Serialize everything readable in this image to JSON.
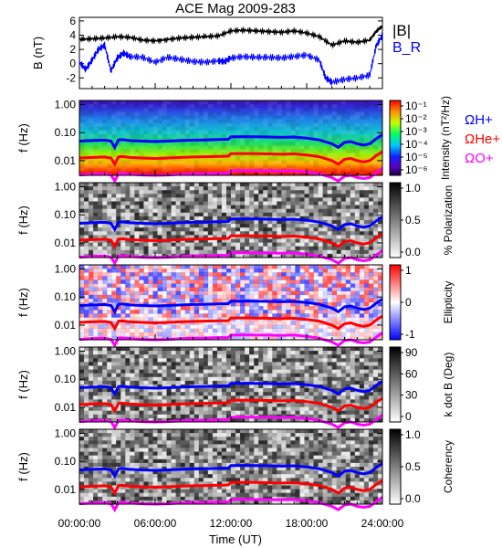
{
  "chart_data": [
    {
      "type": "line",
      "title": "ACE Mag 2009-283",
      "ylabel": "B (nT)",
      "ylim": [
        -3.5,
        6.5
      ],
      "yticks": [
        -2,
        0,
        2,
        4,
        6
      ],
      "xlim_hours": [
        0,
        24
      ],
      "legend": [
        "|B|",
        "B_R"
      ],
      "legend_placement": "right",
      "series": [
        {
          "name": "|B|",
          "color": "#000000",
          "x": [
            0,
            1,
            2,
            3,
            4,
            5,
            6,
            7,
            8,
            9,
            10,
            11,
            12,
            13,
            14,
            15,
            16,
            17,
            18,
            19,
            20,
            21,
            22,
            23,
            23.5,
            24
          ],
          "y": [
            3.4,
            3.5,
            3.6,
            3.8,
            3.7,
            3.3,
            3.2,
            3.4,
            3.6,
            3.7,
            3.8,
            3.9,
            4.6,
            4.7,
            4.6,
            4.5,
            4.4,
            4.6,
            4.3,
            3.8,
            2.6,
            3.2,
            3.0,
            3.3,
            4.5,
            5.3
          ]
        },
        {
          "name": "B_R",
          "color": "#0000ff",
          "x": [
            0,
            0.5,
            1,
            1.5,
            2,
            2.5,
            3,
            3.5,
            4,
            5,
            6,
            7,
            8,
            9,
            10,
            11,
            11.5,
            12,
            13,
            14,
            15,
            16,
            17,
            18,
            19,
            19.5,
            20,
            21,
            22,
            23,
            23.5,
            24
          ],
          "y": [
            0.2,
            -0.8,
            0.5,
            2.0,
            2.6,
            -1.0,
            0.8,
            1.5,
            1.0,
            0.9,
            0.2,
            0.9,
            0.6,
            0.3,
            0.2,
            0.4,
            0.3,
            0.8,
            1.0,
            0.9,
            0.9,
            0.8,
            1.0,
            1.2,
            0.5,
            -2.0,
            -2.6,
            -2.2,
            -2.0,
            -1.6,
            2.5,
            4.0
          ]
        }
      ]
    },
    {
      "type": "heatmap",
      "ylabel": "f (Hz)",
      "yscale": "log",
      "ylim": [
        0.003,
        1.4
      ],
      "yticks": [
        "1.00",
        "0.10",
        "0.01"
      ],
      "colorbar": {
        "label": "Intensity (nT²/Hz)",
        "scale": "log",
        "ticks": [
          "10⁻¹",
          "10⁻²",
          "10⁻³",
          "10⁻⁴",
          "10⁻⁵",
          "10⁻⁶"
        ],
        "colormap": "rainbow"
      },
      "gyro_labels": [
        {
          "text": "ΩH+",
          "color": "#0000ff"
        },
        {
          "text": "ΩHe+",
          "color": "#ff0000"
        },
        {
          "text": "ΩO+",
          "color": "#ff00ff"
        }
      ]
    },
    {
      "type": "heatmap",
      "ylabel": "f (Hz)",
      "yscale": "log",
      "yticks": [
        "1.00",
        "0.10",
        "0.01"
      ],
      "colorbar": {
        "label": "% Polarization",
        "ticks": [
          "1.0",
          "0.5",
          "0.0"
        ],
        "colormap": "gray"
      }
    },
    {
      "type": "heatmap",
      "ylabel": "f (Hz)",
      "yscale": "log",
      "yticks": [
        "1.00",
        "0.10",
        "0.01"
      ],
      "colorbar": {
        "label": "Ellipticity",
        "ticks": [
          "1",
          "0",
          "-1"
        ],
        "colormap": "blue-white-red"
      }
    },
    {
      "type": "heatmap",
      "ylabel": "f (Hz)",
      "yscale": "log",
      "yticks": [
        "1.00",
        "0.10",
        "0.01"
      ],
      "colorbar": {
        "label": "k dot B (Deg)",
        "ticks": [
          "90",
          "60",
          "30",
          "0"
        ],
        "colormap": "gray"
      }
    },
    {
      "type": "heatmap",
      "ylabel": "f (Hz)",
      "yscale": "log",
      "yticks": [
        "1.00",
        "0.10",
        "0.01"
      ],
      "colorbar": {
        "label": "Coherency",
        "ticks": [
          "1.0",
          "0.5",
          "0.0"
        ],
        "colormap": "gray"
      }
    }
  ],
  "gyrofrequency_curves": {
    "x": [
      0,
      1,
      2,
      2.5,
      2.8,
      3.1,
      3.4,
      4,
      5,
      6,
      7,
      8,
      9,
      10,
      11,
      11.8,
      12,
      13,
      14,
      15,
      16,
      17,
      18,
      19,
      20,
      20.5,
      21,
      21.5,
      22,
      22.5,
      23,
      23.5,
      24
    ],
    "H_plus": [
      0.05,
      0.052,
      0.054,
      0.05,
      0.03,
      0.055,
      0.056,
      0.052,
      0.05,
      0.048,
      0.05,
      0.052,
      0.054,
      0.055,
      0.057,
      0.058,
      0.071,
      0.072,
      0.071,
      0.07,
      0.068,
      0.07,
      0.064,
      0.055,
      0.04,
      0.03,
      0.045,
      0.048,
      0.04,
      0.036,
      0.04,
      0.06,
      0.085
    ],
    "He_plus": [
      0.0125,
      0.013,
      0.0135,
      0.0125,
      0.0075,
      0.0138,
      0.014,
      0.013,
      0.0125,
      0.012,
      0.0125,
      0.013,
      0.0135,
      0.0138,
      0.0142,
      0.0145,
      0.0178,
      0.018,
      0.0178,
      0.0175,
      0.017,
      0.0175,
      0.016,
      0.0138,
      0.01,
      0.0075,
      0.0112,
      0.012,
      0.01,
      0.009,
      0.01,
      0.015,
      0.021
    ],
    "O_plus": [
      0.0031,
      0.0033,
      0.0034,
      0.0031,
      0.0019,
      0.0034,
      0.0035,
      0.0033,
      0.0031,
      0.003,
      0.0031,
      0.0033,
      0.0034,
      0.0034,
      0.0036,
      0.0036,
      0.0044,
      0.0045,
      0.0044,
      0.0044,
      0.0043,
      0.0044,
      0.004,
      0.0034,
      0.0025,
      0.0019,
      0.0028,
      0.003,
      0.0025,
      0.0023,
      0.0025,
      0.0037,
      0.0053
    ],
    "colors": {
      "H_plus": "#0000ff",
      "He_plus": "#ff0000",
      "O_plus": "#ff00ff"
    }
  },
  "x_axis": {
    "label": "Time (UT)",
    "tick_labels": [
      "00:00:00",
      "06:00:00",
      "12:00:00",
      "18:00:00",
      "24:00:00"
    ],
    "tick_hours": [
      0,
      6,
      12,
      18,
      24
    ]
  }
}
